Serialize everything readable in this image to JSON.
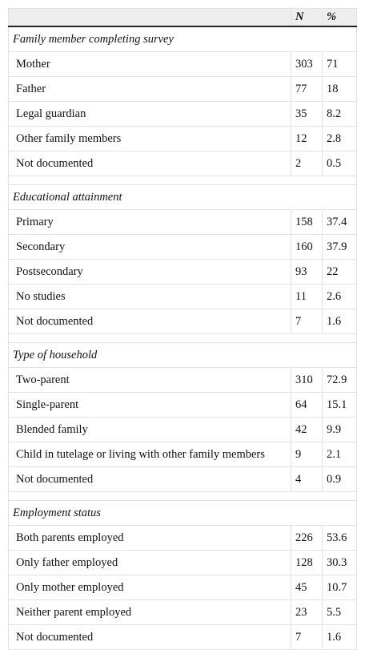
{
  "table": {
    "header": [
      "N",
      "%"
    ],
    "sections": [
      {
        "title": "Family member completing survey",
        "rows": [
          [
            "Mother",
            303,
            71
          ],
          [
            "Father",
            77,
            18
          ],
          [
            "Legal guardian",
            35,
            8.2
          ],
          [
            "Other family members",
            12,
            2.8
          ],
          [
            "Not documented",
            2,
            0.5
          ]
        ]
      },
      {
        "title": "Educational attainment",
        "rows": [
          [
            "Primary",
            158,
            37.4
          ],
          [
            "Secondary",
            160,
            37.9
          ],
          [
            "Postsecondary",
            93,
            22
          ],
          [
            "No studies",
            11,
            2.6
          ],
          [
            "Not documented",
            7,
            1.6
          ]
        ]
      },
      {
        "title": "Type of household",
        "rows": [
          [
            "Two-parent",
            310,
            72.9
          ],
          [
            "Single-parent",
            64,
            15.1
          ],
          [
            "Blended family",
            42,
            9.9
          ],
          [
            "Child in tutelage or living with other family members",
            9,
            2.1
          ],
          [
            "Not documented",
            4,
            0.9
          ]
        ]
      },
      {
        "title": "Employment status",
        "rows": [
          [
            "Both parents employed",
            226,
            53.6
          ],
          [
            "Only father employed",
            128,
            30.3
          ],
          [
            "Only mother employed",
            45,
            10.7
          ],
          [
            "Neither parent employed",
            23,
            5.5
          ],
          [
            "Not documented",
            7,
            1.6
          ]
        ]
      }
    ]
  }
}
